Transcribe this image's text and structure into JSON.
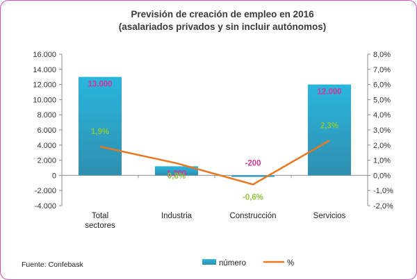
{
  "chart_data": {
    "type": "bar",
    "title": "Previsión de creación de empleo en 2016",
    "subtitle": "(asalariados privados y sin incluir autónomos)",
    "categories": [
      "Total\nsectores",
      "Industria",
      "Construcción",
      "Servicios"
    ],
    "series": [
      {
        "name": "número",
        "type": "bar",
        "axis": "left",
        "values": [
          13000,
          1200,
          -200,
          12000
        ],
        "labels": [
          "13.000",
          "1.200",
          "-200",
          "12.000"
        ],
        "color": "#2ba7cc",
        "label_color": "#d6339b"
      },
      {
        "name": "%",
        "type": "line",
        "axis": "right",
        "values": [
          1.9,
          0.8,
          -0.6,
          2.3
        ],
        "labels": [
          "1,9%",
          "0,8%",
          "-0,6%",
          "2,3%"
        ],
        "color": "#e87722",
        "label_color": "#8dc63f"
      }
    ],
    "y_left": {
      "range": [
        -4000,
        16000
      ],
      "ticks": [
        "-4.000",
        "-2.000",
        "0",
        "2.000",
        "4.000",
        "6.000",
        "8.000",
        "10.000",
        "12.000",
        "14.000",
        "16.000"
      ]
    },
    "y_right": {
      "range": [
        -2,
        8
      ],
      "ticks": [
        "-2,0%",
        "-1,0%",
        "0,0%",
        "1,0%",
        "2,0%",
        "3,0%",
        "4,0%",
        "5,0%",
        "6,0%",
        "7,0%",
        "8,0%"
      ]
    },
    "grid": false,
    "legend_position": "bottom"
  },
  "source": "Fuente: Confebask"
}
